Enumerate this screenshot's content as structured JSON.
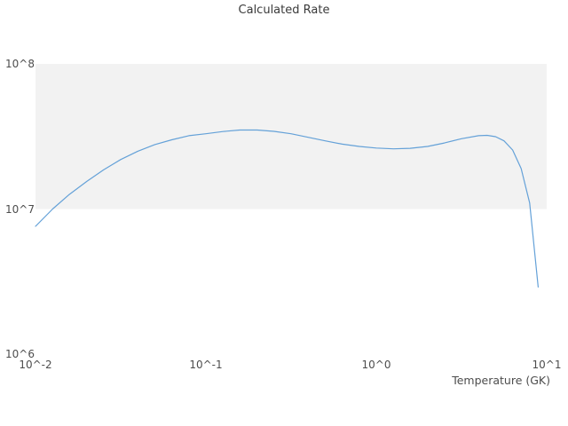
{
  "chart_data": {
    "type": "line",
    "title": "Calculated Rate",
    "xlabel": "Temperature (GK)",
    "ylabel": "",
    "xscale": "log",
    "yscale": "log",
    "xlim": [
      0.01,
      10
    ],
    "ylim": [
      1000000.0,
      100000000.0
    ],
    "grid": "off",
    "legend": "none",
    "x_ticks": [
      {
        "value": 0.01,
        "label": "10^-2"
      },
      {
        "value": 0.1,
        "label": "10^-1"
      },
      {
        "value": 1,
        "label": "10^0"
      },
      {
        "value": 10,
        "label": "10^1"
      }
    ],
    "y_ticks": [
      {
        "value": 1000000.0,
        "label": "10^6"
      },
      {
        "value": 10000000.0,
        "label": "10^7"
      },
      {
        "value": 100000000.0,
        "label": "10^8"
      }
    ],
    "shaded_band": {
      "y_from": 10000000.0,
      "y_to": 100000000.0,
      "color": "#f2f2f2"
    },
    "line_color": "#64a1d8",
    "series": [
      {
        "name": "Calculated Rate",
        "x": [
          0.01,
          0.0126,
          0.0158,
          0.02,
          0.0251,
          0.0316,
          0.0398,
          0.0501,
          0.0631,
          0.0794,
          0.1,
          0.126,
          0.158,
          0.2,
          0.251,
          0.316,
          0.398,
          0.501,
          0.631,
          0.794,
          1.0,
          1.26,
          1.58,
          2.0,
          2.51,
          3.16,
          3.98,
          4.47,
          5.01,
          5.62,
          6.31,
          7.08,
          7.94,
          8.91
        ],
        "y": [
          7600000.0,
          10000000.0,
          12600000.0,
          15500000.0,
          18600000.0,
          21900000.0,
          25000000.0,
          27800000.0,
          30000000.0,
          32000000.0,
          33000000.0,
          34200000.0,
          35000000.0,
          35000000.0,
          34300000.0,
          33000000.0,
          31200000.0,
          29500000.0,
          28000000.0,
          27000000.0,
          26300000.0,
          26000000.0,
          26200000.0,
          27000000.0,
          28500000.0,
          30500000.0,
          32000000.0,
          32200000.0,
          31500000.0,
          29500000.0,
          25500000.0,
          19000000.0,
          11000000.0,
          2900000.0
        ]
      }
    ]
  }
}
